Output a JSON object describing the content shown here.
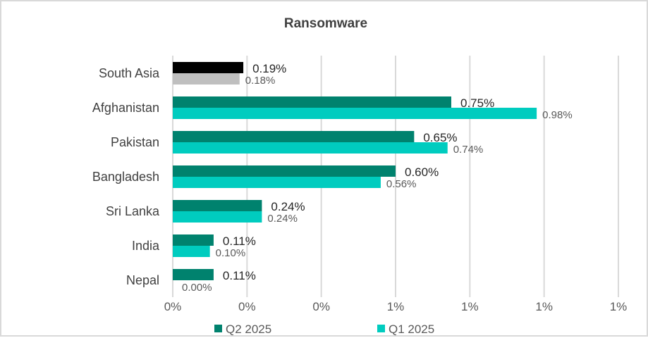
{
  "chart_data": {
    "type": "bar",
    "orientation": "horizontal",
    "title": "Ransomware",
    "categories": [
      "South Asia",
      "Afghanistan",
      "Pakistan",
      "Bangladesh",
      "Sri Lanka",
      "India",
      "Nepal"
    ],
    "series": [
      {
        "name": "Q2 2025",
        "values": [
          0.19,
          0.75,
          0.65,
          0.6,
          0.24,
          0.11,
          0.11
        ],
        "labels": [
          "0.19%",
          "0.75%",
          "0.65%",
          "0.60%",
          "0.24%",
          "0.11%",
          "0.11%"
        ],
        "color": "#00826E",
        "highlight_color": "#000000"
      },
      {
        "name": "Q1 2025",
        "values": [
          0.18,
          0.98,
          0.74,
          0.56,
          0.24,
          0.1,
          0.0
        ],
        "labels": [
          "0.18%",
          "0.98%",
          "0.74%",
          "0.56%",
          "0.24%",
          "0.10%",
          "0.00%"
        ],
        "color": "#00CCBF",
        "highlight_color": "#BFBFBF"
      }
    ],
    "xlim": [
      0,
      1.2
    ],
    "xticks": [
      0,
      0.2,
      0.4,
      0.6,
      0.8,
      1.0,
      1.2
    ],
    "xtick_labels": [
      "0%",
      "0%",
      "0%",
      "1%",
      "1%",
      "1%",
      "1%"
    ],
    "xlabel": "",
    "ylabel": "",
    "grid": "vertical",
    "legend": "bottom"
  }
}
